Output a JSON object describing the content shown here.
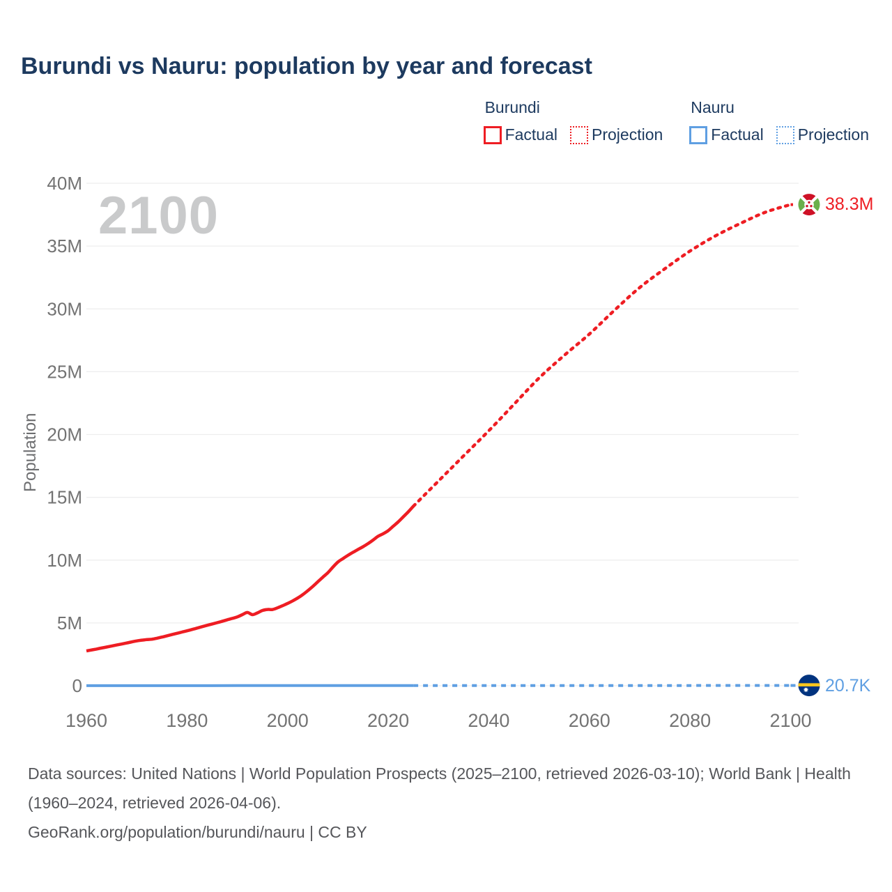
{
  "page": {
    "title": "Burundi vs Nauru: population by year and forecast"
  },
  "legend": {
    "groups": [
      {
        "name": "Burundi",
        "color": "#ee1d23",
        "items": [
          {
            "label": "Factual",
            "style": "solid"
          },
          {
            "label": "Projection",
            "style": "dotted"
          }
        ]
      },
      {
        "name": "Nauru",
        "color": "#5f9fe2",
        "items": [
          {
            "label": "Factual",
            "style": "solid"
          },
          {
            "label": "Projection",
            "style": "dotted"
          }
        ]
      }
    ]
  },
  "chart_data": {
    "type": "line",
    "title": "Burundi vs Nauru: population by year and forecast",
    "xlabel": "",
    "ylabel": "Population",
    "watermark": "2100",
    "grid": "horizontal",
    "legend_position": "top-right",
    "xlim": [
      1960,
      2100
    ],
    "ylim_millions": [
      0,
      40
    ],
    "x_ticks": {
      "values": [
        1960,
        1980,
        2000,
        2020,
        2040,
        2060,
        2080,
        2100
      ],
      "labels": [
        "1960",
        "1980",
        "2000",
        "2020",
        "2040",
        "2060",
        "2080",
        "2100"
      ]
    },
    "y_ticks": {
      "values_millions": [
        0,
        5,
        10,
        15,
        20,
        25,
        30,
        35,
        40
      ],
      "labels": [
        "0",
        "5M",
        "10M",
        "15M",
        "20M",
        "25M",
        "30M",
        "35M",
        "40M"
      ]
    },
    "series": [
      {
        "name": "Burundi Factual",
        "country": "Burundi",
        "style": "solid",
        "color": "#ee1d23",
        "points_year_millions": [
          [
            1960,
            2.77
          ],
          [
            1962,
            2.92
          ],
          [
            1964,
            3.08
          ],
          [
            1966,
            3.24
          ],
          [
            1968,
            3.4
          ],
          [
            1970,
            3.57
          ],
          [
            1971,
            3.63
          ],
          [
            1972,
            3.67
          ],
          [
            1973,
            3.7
          ],
          [
            1974,
            3.78
          ],
          [
            1975,
            3.87
          ],
          [
            1976,
            3.97
          ],
          [
            1977,
            4.07
          ],
          [
            1978,
            4.17
          ],
          [
            1979,
            4.27
          ],
          [
            1980,
            4.37
          ],
          [
            1982,
            4.59
          ],
          [
            1984,
            4.81
          ],
          [
            1986,
            5.02
          ],
          [
            1988,
            5.25
          ],
          [
            1990,
            5.48
          ],
          [
            1991,
            5.66
          ],
          [
            1992,
            5.83
          ],
          [
            1993,
            5.66
          ],
          [
            1994,
            5.8
          ],
          [
            1995,
            5.99
          ],
          [
            1996,
            6.07
          ],
          [
            1997,
            6.07
          ],
          [
            1998,
            6.2
          ],
          [
            1999,
            6.37
          ],
          [
            2000,
            6.55
          ],
          [
            2001,
            6.75
          ],
          [
            2002,
            6.98
          ],
          [
            2003,
            7.25
          ],
          [
            2004,
            7.56
          ],
          [
            2005,
            7.9
          ],
          [
            2006,
            8.27
          ],
          [
            2007,
            8.64
          ],
          [
            2008,
            9.0
          ],
          [
            2009,
            9.44
          ],
          [
            2010,
            9.85
          ],
          [
            2011,
            10.12
          ],
          [
            2012,
            10.38
          ],
          [
            2013,
            10.62
          ],
          [
            2014,
            10.85
          ],
          [
            2015,
            11.07
          ],
          [
            2016,
            11.32
          ],
          [
            2017,
            11.6
          ],
          [
            2018,
            11.9
          ],
          [
            2019,
            12.1
          ],
          [
            2020,
            12.35
          ],
          [
            2021,
            12.7
          ],
          [
            2022,
            13.05
          ],
          [
            2023,
            13.45
          ],
          [
            2024,
            13.85
          ],
          [
            2025,
            14.29
          ]
        ]
      },
      {
        "name": "Burundi Projection",
        "country": "Burundi",
        "style": "dotted",
        "color": "#ee1d23",
        "points_year_millions": [
          [
            2025,
            14.29
          ],
          [
            2030,
            16.3
          ],
          [
            2035,
            18.3
          ],
          [
            2040,
            20.3
          ],
          [
            2045,
            22.4
          ],
          [
            2050,
            24.5
          ],
          [
            2055,
            26.3
          ],
          [
            2060,
            28.0
          ],
          [
            2065,
            29.9
          ],
          [
            2070,
            31.7
          ],
          [
            2075,
            33.2
          ],
          [
            2080,
            34.6
          ],
          [
            2085,
            35.8
          ],
          [
            2090,
            36.8
          ],
          [
            2095,
            37.7
          ],
          [
            2100,
            38.3
          ]
        ]
      },
      {
        "name": "Nauru Factual",
        "country": "Nauru",
        "style": "solid",
        "color": "#5f9fe2",
        "points_year_millions": [
          [
            1960,
            0.0044
          ],
          [
            1970,
            0.0066
          ],
          [
            1980,
            0.0075
          ],
          [
            1990,
            0.0091
          ],
          [
            2000,
            0.0101
          ],
          [
            2010,
            0.01
          ],
          [
            2020,
            0.0119
          ],
          [
            2025,
            0.0123
          ]
        ]
      },
      {
        "name": "Nauru Projection",
        "country": "Nauru",
        "style": "dotted",
        "color": "#5f9fe2",
        "points_year_millions": [
          [
            2025,
            0.0123
          ],
          [
            2040,
            0.0145
          ],
          [
            2060,
            0.0172
          ],
          [
            2080,
            0.0193
          ],
          [
            2100,
            0.0207
          ]
        ]
      }
    ],
    "end_labels": [
      {
        "series": "Burundi",
        "value": "38.3M",
        "flag": "burundi"
      },
      {
        "series": "Nauru",
        "value": "20.7K",
        "flag": "nauru"
      }
    ]
  },
  "footer": {
    "sources_line": "Data sources: United Nations | World Population Prospects (2025–2100, retrieved 2026-03-10); World Bank | Health (1960–2024, retrieved 2026-04-06).",
    "attribution_line": "GeoRank.org/population/burundi/nauru | CC BY"
  },
  "colors": {
    "burundi": "#ee1d23",
    "nauru": "#5f9fe2",
    "title_text": "#1d3a5f",
    "axis_text": "#737373",
    "watermark": "#c9cacb",
    "gridline": "#ededee",
    "footer_text": "#55565a"
  }
}
